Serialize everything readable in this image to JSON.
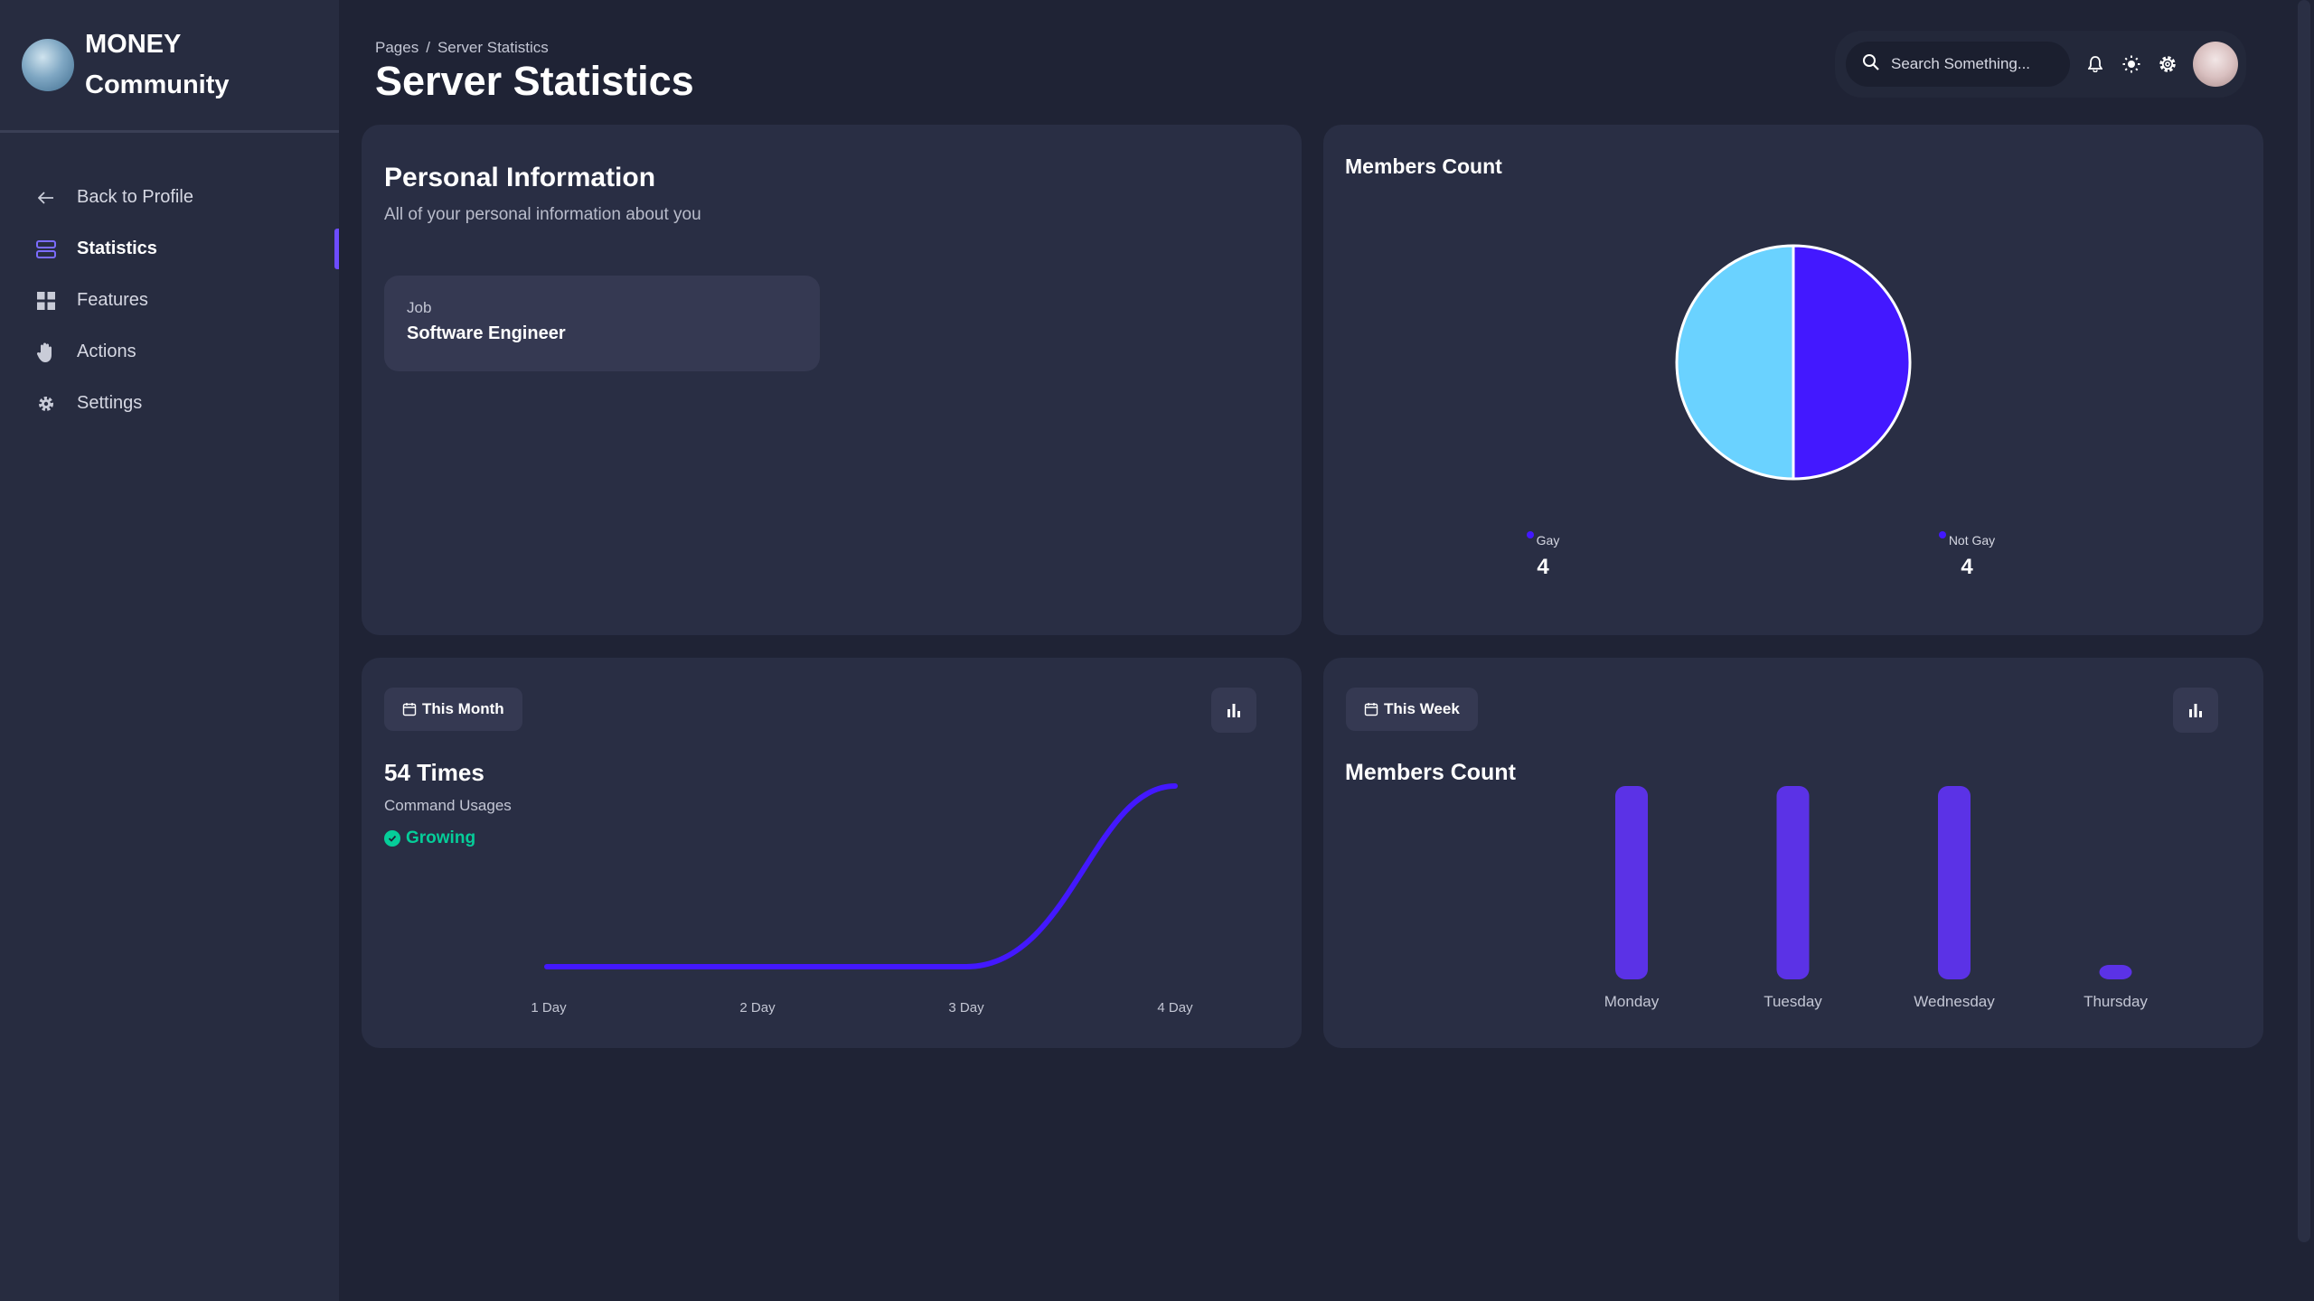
{
  "brand": {
    "line1": "MONEY",
    "line2": "Community"
  },
  "sidebar": {
    "items": [
      {
        "label": "Back to Profile",
        "icon": "arrow-left-icon"
      },
      {
        "label": "Statistics",
        "icon": "server-icon",
        "active": true
      },
      {
        "label": "Features",
        "icon": "grid-icon"
      },
      {
        "label": "Actions",
        "icon": "hand-icon"
      },
      {
        "label": "Settings",
        "icon": "gear-icon"
      }
    ]
  },
  "header": {
    "breadcrumb_root": "Pages",
    "breadcrumb_sep": "/",
    "breadcrumb_current": "Server Statistics",
    "title": "Server Statistics",
    "search_placeholder": "Search Something..."
  },
  "personal": {
    "title": "Personal Information",
    "subtitle": "All of your personal information about you",
    "job_label": "Job",
    "job_value": "Software Engineer"
  },
  "pie_card": {
    "title": "Members Count",
    "legend": [
      {
        "name": "Gay",
        "value": "4"
      },
      {
        "name": "Not Gay",
        "value": "4"
      }
    ]
  },
  "month_card": {
    "period": "This Month",
    "metric": "54 Times",
    "metric_label": "Command Usages",
    "status": "Growing"
  },
  "week_card": {
    "period": "This Week",
    "title": "Members Count"
  },
  "colors": {
    "accent": "#4318ff",
    "accent_light": "#6ad2ff",
    "bar": "#5b32e6",
    "positive": "#05cd99"
  },
  "chart_data": [
    {
      "type": "pie",
      "title": "Members Count",
      "labels": [
        "Gay",
        "Not Gay"
      ],
      "values": [
        4,
        4
      ],
      "colors": [
        "#4318ff",
        "#6ad2ff"
      ]
    },
    {
      "type": "line",
      "title": "",
      "categories": [
        "1 Day",
        "2 Day",
        "3 Day",
        "4 Day"
      ],
      "series": [
        {
          "values": [
            0,
            0,
            0,
            54
          ]
        }
      ],
      "color": "#4318ff"
    },
    {
      "type": "bar",
      "title": "Members Count",
      "categories": [
        "Monday",
        "Tuesday",
        "Wednesday",
        "Thursday"
      ],
      "values": [
        4,
        4,
        4,
        0
      ],
      "color": "#5b32e6"
    }
  ]
}
